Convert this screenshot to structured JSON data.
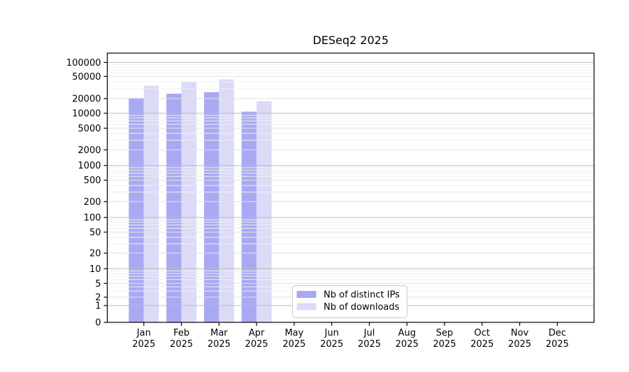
{
  "chart_data": {
    "type": "bar",
    "title": "DESeq2 2025",
    "categories": [
      "Jan 2025",
      "Feb 2025",
      "Mar 2025",
      "Apr 2025",
      "May 2025",
      "Jun 2025",
      "Jul 2025",
      "Aug 2025",
      "Sep 2025",
      "Oct 2025",
      "Nov 2025",
      "Dec 2025"
    ],
    "series": [
      {
        "name": "Nb of distinct IPs",
        "color": "#a9a9f3",
        "values": [
          20600,
          24500,
          26000,
          10800,
          null,
          null,
          null,
          null,
          null,
          null,
          null,
          null
        ]
      },
      {
        "name": "Nb of downloads",
        "color": "#dbdbf8",
        "values": [
          34000,
          40900,
          44100,
          17700,
          null,
          null,
          null,
          null,
          null,
          null,
          null,
          null
        ]
      }
    ],
    "y_ticks": [
      0,
      1,
      2,
      5,
      10,
      20,
      50,
      100,
      200,
      500,
      1000,
      2000,
      5000,
      10000,
      20000,
      50000,
      100000
    ],
    "xlabel": "",
    "ylabel": "",
    "ylim": [
      0,
      160000
    ],
    "yscale": "log-with-zero",
    "grid": true,
    "legend_position": "bottom-center"
  },
  "colors": {
    "background": "#ffffff",
    "spine": "#000000",
    "grid_decade": "#bbbbbb",
    "grid_labeled": "#e2e2e2",
    "grid_minor": "#efefef",
    "legend_border": "#cccccc",
    "legend_background": "#ffffff",
    "tick_label": "#000000"
  }
}
